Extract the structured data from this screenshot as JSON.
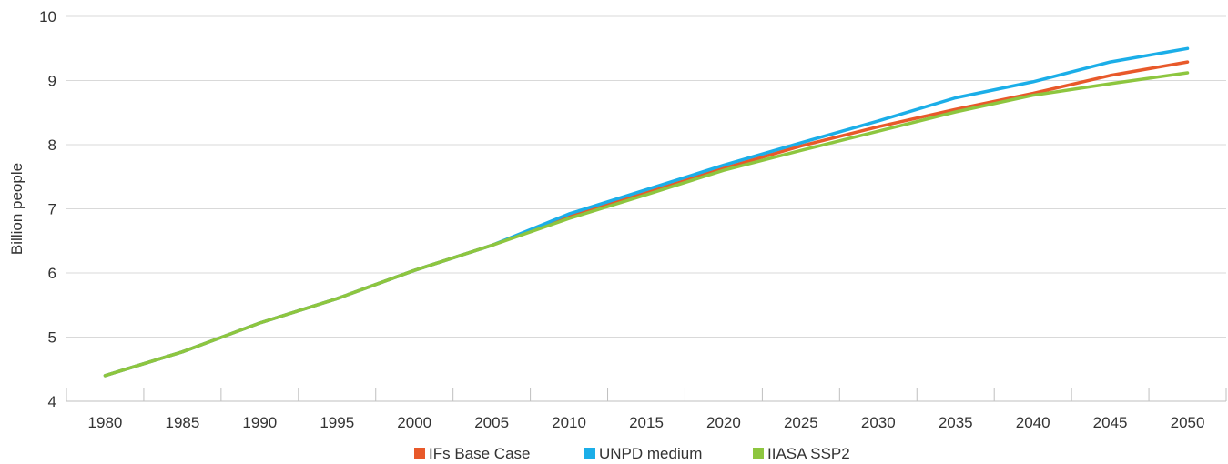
{
  "chart_data": {
    "type": "line",
    "title": "",
    "xlabel": "",
    "ylabel": "Billion people",
    "ylim": [
      4,
      10
    ],
    "yticks": [
      "4",
      "5",
      "6",
      "7",
      "8",
      "9",
      "10"
    ],
    "categories": [
      "1980",
      "1985",
      "1990",
      "1995",
      "2000",
      "2005",
      "2010",
      "2015",
      "2020",
      "2025",
      "2030",
      "2035",
      "2040",
      "2045",
      "2050"
    ],
    "grid": "horizontal",
    "legend_position": "bottom",
    "series": [
      {
        "name": "IFs Base Case",
        "color": "#E8592A",
        "values": [
          4.4,
          4.77,
          5.22,
          5.6,
          6.04,
          6.43,
          6.88,
          7.25,
          7.63,
          7.98,
          8.28,
          8.55,
          8.8,
          9.08,
          9.29
        ]
      },
      {
        "name": "UNPD medium",
        "color": "#1BAEE8",
        "values": [
          4.4,
          4.77,
          5.22,
          5.6,
          6.04,
          6.43,
          6.92,
          7.3,
          7.68,
          8.03,
          8.37,
          8.73,
          8.98,
          9.29,
          9.5
        ]
      },
      {
        "name": "IIASA SSP2",
        "color": "#8DC63F",
        "values": [
          4.4,
          4.77,
          5.22,
          5.6,
          6.04,
          6.43,
          6.85,
          7.22,
          7.6,
          7.91,
          8.21,
          8.51,
          8.77,
          8.95,
          9.12
        ]
      }
    ]
  }
}
